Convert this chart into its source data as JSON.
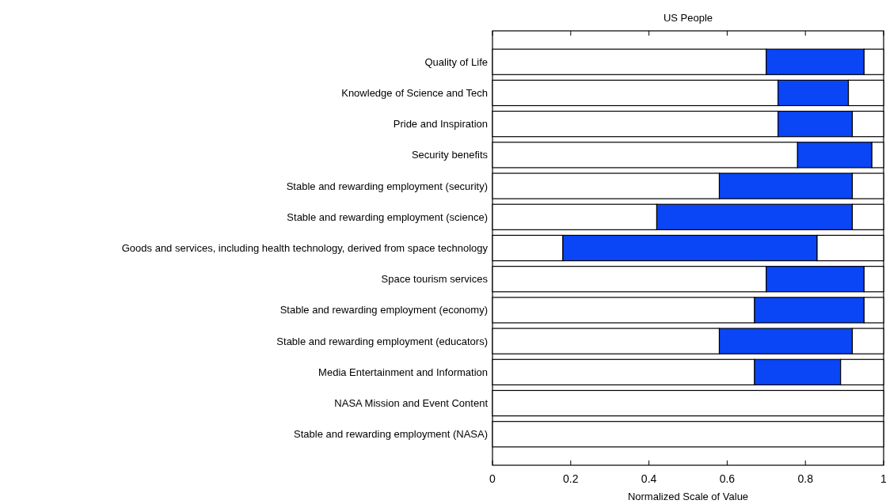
{
  "chart_data": {
    "type": "bar",
    "orientation": "horizontal",
    "stacked": true,
    "title": "US People",
    "xlabel": "Normalized Scale of Value",
    "categories": [
      "Quality of Life",
      "Knowledge of Science and Tech",
      "Pride and Inspiration",
      "Security benefits",
      "Stable and rewarding employment (security)",
      "Stable and rewarding employment (science)",
      "Goods and services, including health technology, derived from space technology",
      "Space tourism services",
      "Stable and rewarding employment (economy)",
      "Stable and rewarding employment (educators)",
      "Media Entertainment and Information",
      "NASA Mission and Event Content",
      "Stable and rewarding employment (NASA)"
    ],
    "series": [
      {
        "color": "#ffffff",
        "values": [
          0.7,
          0.73,
          0.73,
          0.78,
          0.58,
          0.42,
          0.18,
          0.7,
          0.67,
          0.58,
          0.67,
          1,
          1
        ]
      },
      {
        "color": "#0a46f5",
        "values": [
          0.25,
          0.18,
          0.19,
          0.19,
          0.34,
          0.5,
          0.65,
          0.25,
          0.28,
          0.34,
          0.22,
          null,
          null
        ]
      },
      {
        "color": "#ffffff",
        "values": [
          0.05,
          0.09,
          0.08,
          0.03,
          0.08,
          0.08,
          0.17,
          0.05,
          0.05,
          0.08,
          0.11,
          0,
          0
        ]
      }
    ],
    "xlim": [
      0,
      1
    ],
    "xticks": [
      0,
      0.2,
      0.4,
      0.6,
      0.8,
      1
    ],
    "grid": false
  }
}
